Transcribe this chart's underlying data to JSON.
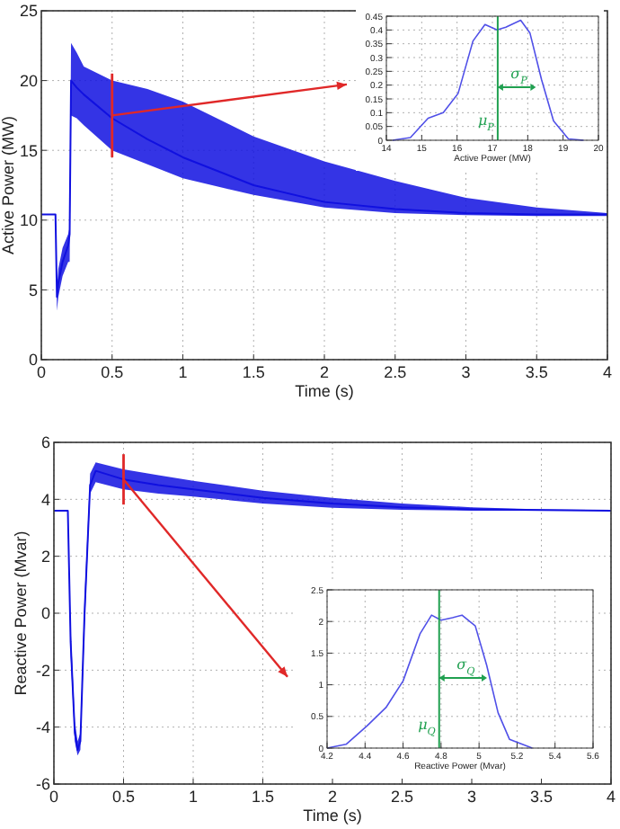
{
  "chart_data": [
    {
      "type": "line",
      "xlabel": "Time (s)",
      "ylabel": "Active Power (MW)",
      "xlim": [
        0,
        4
      ],
      "ylim": [
        0,
        25
      ],
      "xticks": [
        0,
        0.5,
        1,
        1.5,
        2,
        2.5,
        3,
        3.5,
        4
      ],
      "yticks": [
        0,
        5,
        10,
        15,
        20,
        25
      ],
      "grid": true,
      "series": [
        {
          "color": "#1010e0",
          "x": [
            0,
            0.1,
            0.11,
            0.12,
            0.15,
            0.19,
            0.2,
            0.21,
            0.25,
            0.3,
            0.5,
            0.75,
            1,
            1.5,
            2,
            2.5,
            3,
            3.5,
            4
          ],
          "values": [
            10.4,
            10.4,
            4.5,
            5.5,
            7,
            8.2,
            9,
            20,
            19.5,
            19,
            17.3,
            15.8,
            14.5,
            12.5,
            11.3,
            10.8,
            10.5,
            10.4,
            10.4
          ],
          "lower": [
            10.4,
            10.4,
            3.5,
            4.5,
            6,
            7,
            7,
            17.5,
            17.3,
            16.8,
            15,
            14,
            13,
            11.8,
            10.9,
            10.5,
            10.35,
            10.3,
            10.3
          ],
          "upper": [
            10.4,
            10.4,
            5,
            6.5,
            8,
            9,
            9.5,
            22.7,
            22,
            21,
            20,
            19.4,
            18.5,
            16,
            14.2,
            12.8,
            11.6,
            10.9,
            10.5
          ]
        }
      ],
      "ref_lines": [
        {
          "axis": "x",
          "value": 0.5,
          "color": "#e02828"
        }
      ]
    },
    {
      "type": "line",
      "xlabel": "Active Power (MW)",
      "xlim": [
        14,
        20
      ],
      "ylim": [
        0,
        0.45
      ],
      "xticks": [
        14,
        15,
        16,
        17,
        18,
        19,
        20
      ],
      "yticks": [
        0,
        0.05,
        0.1,
        0.15,
        0.2,
        0.25,
        0.3,
        0.35,
        0.4,
        0.45
      ],
      "grid": true,
      "series": [
        {
          "color": "#5050e8",
          "x": [
            14.17,
            14.68,
            15.18,
            15.61,
            16.03,
            16.45,
            16.79,
            17.13,
            17.38,
            17.8,
            18.06,
            18.39,
            18.73,
            19.15,
            19.58
          ],
          "values": [
            0,
            0.01,
            0.08,
            0.1,
            0.17,
            0.36,
            0.42,
            0.4,
            0.41,
            0.435,
            0.39,
            0.22,
            0.07,
            0.005,
            0
          ]
        }
      ],
      "ref_lines": [
        {
          "axis": "x",
          "value": 17.15,
          "label": "μ$_{P}$",
          "color": "#20a050"
        }
      ],
      "annotations": [
        "σ$_{P}$"
      ]
    },
    {
      "type": "line",
      "xlabel": "Time (s)",
      "ylabel": "Reactive Power (Mvar)",
      "xlim": [
        0,
        4
      ],
      "ylim": [
        -6,
        6
      ],
      "xticks": [
        0,
        0.5,
        1,
        1.5,
        2,
        2.5,
        3,
        3.5,
        4
      ],
      "yticks": [
        -6,
        -4,
        -2,
        0,
        2,
        4,
        6
      ],
      "grid": true,
      "series": [
        {
          "color": "#1010e0",
          "x": [
            0,
            0.1,
            0.12,
            0.15,
            0.17,
            0.19,
            0.22,
            0.26,
            0.3,
            0.5,
            0.75,
            1,
            1.5,
            2,
            2.5,
            3,
            3.5,
            4
          ],
          "values": [
            3.6,
            3.6,
            -1,
            -4.2,
            -4.8,
            -4.5,
            0,
            4.5,
            5,
            4.7,
            4.5,
            4.35,
            4.05,
            3.85,
            3.72,
            3.65,
            3.62,
            3.6
          ],
          "lower": [
            3.6,
            3.6,
            -1.5,
            -4.5,
            -5,
            -4.8,
            -0.5,
            4.2,
            4.6,
            4.35,
            4.2,
            4.1,
            3.85,
            3.7,
            3.63,
            3.6,
            3.6,
            3.6
          ],
          "upper": [
            3.6,
            3.6,
            -0.5,
            -3.8,
            -4.5,
            -4.2,
            0.5,
            4.9,
            5.3,
            5.05,
            4.85,
            4.65,
            4.3,
            4.05,
            3.85,
            3.72,
            3.65,
            3.62
          ]
        }
      ],
      "ref_lines": [
        {
          "axis": "x",
          "value": 0.5,
          "color": "#e02828"
        }
      ]
    },
    {
      "type": "line",
      "xlabel": "Reactive Power (Mvar)",
      "xlim": [
        4.2,
        5.6
      ],
      "ylim": [
        0,
        2.5
      ],
      "xticks": [
        4.2,
        4.4,
        4.6,
        4.8,
        5,
        5.2,
        5.4,
        5.6
      ],
      "yticks": [
        0,
        0.5,
        1,
        1.5,
        2,
        2.5
      ],
      "grid": true,
      "series": [
        {
          "color": "#5050e8",
          "x": [
            4.2,
            4.3,
            4.41,
            4.51,
            4.6,
            4.69,
            4.75,
            4.8,
            4.86,
            4.91,
            4.98,
            5.04,
            5.1,
            5.16,
            5.28
          ],
          "values": [
            0,
            0.06,
            0.35,
            0.64,
            1.06,
            1.81,
            2.1,
            2.02,
            2.06,
            2.1,
            1.93,
            1.31,
            0.56,
            0.14,
            0
          ]
        }
      ],
      "ref_lines": [
        {
          "axis": "x",
          "value": 4.79,
          "label": "μ$_{Q}$",
          "color": "#20a050"
        }
      ],
      "annotations": [
        "σ$_{Q}$"
      ]
    }
  ]
}
